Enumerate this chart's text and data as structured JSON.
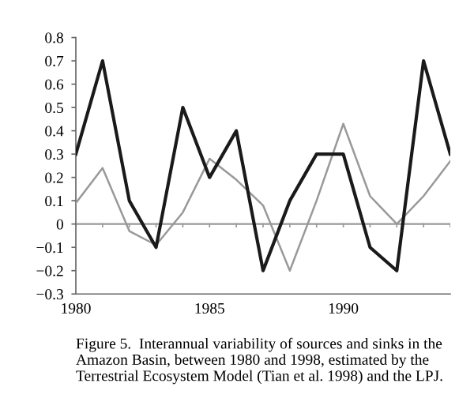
{
  "chart_data": {
    "type": "line",
    "categories": [
      "1980",
      null,
      null,
      null,
      null,
      "1985",
      null,
      null,
      null,
      null,
      "1990",
      null,
      null,
      null,
      null
    ],
    "series": [
      {
        "color": "#999999",
        "values": [
          0.09,
          0.24,
          -0.03,
          -0.09,
          0.05,
          0.28,
          0.19,
          0.08,
          -0.2,
          0.1,
          0.43,
          0.12,
          0.0,
          0.12,
          0.27
        ]
      },
      {
        "color": "#1a1a1a",
        "values": [
          0.3,
          0.7,
          0.1,
          -0.1,
          0.5,
          0.2,
          0.4,
          -0.2,
          0.1,
          0.3,
          0.3,
          -0.1,
          -0.2,
          0.7,
          0.3
        ]
      }
    ],
    "ylim": [
      -0.3,
      0.8
    ],
    "yticks": [
      -0.3,
      -0.2,
      -0.1,
      0,
      0.1,
      0.2,
      0.3,
      0.4,
      0.5,
      0.6,
      0.7,
      0.8
    ],
    "ref_lines": [
      {
        "axis": "y",
        "value": 0,
        "color": "#999999"
      }
    ],
    "grid": false,
    "legend": false,
    "marker": "none",
    "line_style": "solid",
    "annotations": [
      "Figure 5.  Interannual variability of sources and sinks in the Amazon Basin, between 1980 and 1998, estimated by the Terrestrial Ecosystem Model (Tian et al. 1998) and the LPJ."
    ]
  }
}
